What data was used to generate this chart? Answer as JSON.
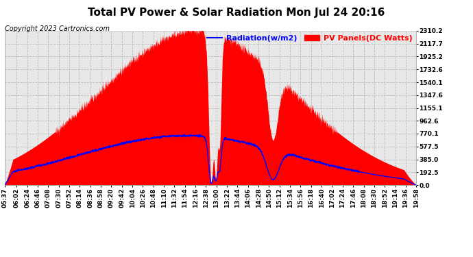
{
  "title": "Total PV Power & Solar Radiation Mon Jul 24 20:16",
  "copyright": "Copyright 2023 Cartronics.com",
  "legend_radiation": "Radiation(w/m2)",
  "legend_pv": "PV Panels(DC Watts)",
  "background_color": "#ffffff",
  "plot_bg_color": "#e8e8e8",
  "grid_color": "#bbbbbb",
  "pv_color": "#ff0000",
  "radiation_color": "#0000ff",
  "ymin": 0.0,
  "ymax": 2310.2,
  "yticks": [
    0.0,
    192.5,
    385.0,
    577.5,
    770.1,
    962.6,
    1155.1,
    1347.6,
    1540.1,
    1732.6,
    1925.2,
    2117.7,
    2310.2
  ],
  "xtick_labels": [
    "05:37",
    "06:02",
    "06:24",
    "06:46",
    "07:08",
    "07:30",
    "07:52",
    "08:14",
    "08:36",
    "08:58",
    "09:20",
    "09:42",
    "10:04",
    "10:26",
    "10:48",
    "11:10",
    "11:32",
    "11:54",
    "12:16",
    "12:38",
    "13:00",
    "13:22",
    "13:44",
    "14:06",
    "14:28",
    "14:50",
    "15:12",
    "15:34",
    "15:56",
    "16:18",
    "16:40",
    "17:02",
    "17:24",
    "17:46",
    "18:08",
    "18:30",
    "18:52",
    "19:14",
    "19:36",
    "19:58"
  ],
  "title_fontsize": 11,
  "tick_fontsize": 6.5,
  "legend_fontsize": 8,
  "copyright_fontsize": 7
}
